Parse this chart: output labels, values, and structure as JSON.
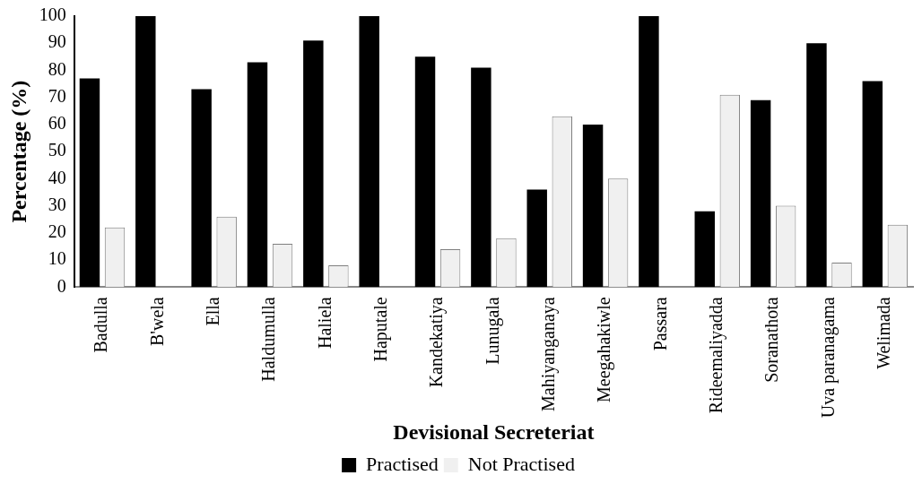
{
  "chart_data": {
    "type": "bar",
    "xlabel": "Devisional Secreteriat",
    "ylabel": "Percentage (%)",
    "categories": [
      "Badulla",
      "B'wela",
      "Ella",
      "Haldumulla",
      "Haliela",
      "Haputale",
      "Kandekatiya",
      "Lunugala",
      "Mahiyanganaya",
      "Meegahakiwle",
      "Passara",
      "Rideemaliyadda",
      "Soranathota",
      "Uva paranagama",
      "Welimada"
    ],
    "series": [
      {
        "name": "Practised",
        "color": "#000000",
        "values": [
          77,
          100,
          73,
          83,
          91,
          100,
          85,
          81,
          36,
          60,
          100,
          28,
          69,
          90,
          76
        ]
      },
      {
        "name": "Not Practised",
        "color": "#f0f0f0",
        "values": [
          22,
          0,
          26,
          16,
          8,
          0,
          14,
          18,
          63,
          40,
          0,
          71,
          30,
          9,
          23
        ]
      }
    ],
    "ylim": [
      0,
      100
    ],
    "yticks": [
      0,
      10,
      20,
      30,
      40,
      50,
      60,
      70,
      80,
      90,
      100
    ],
    "grid": false,
    "legend": "bottom"
  }
}
